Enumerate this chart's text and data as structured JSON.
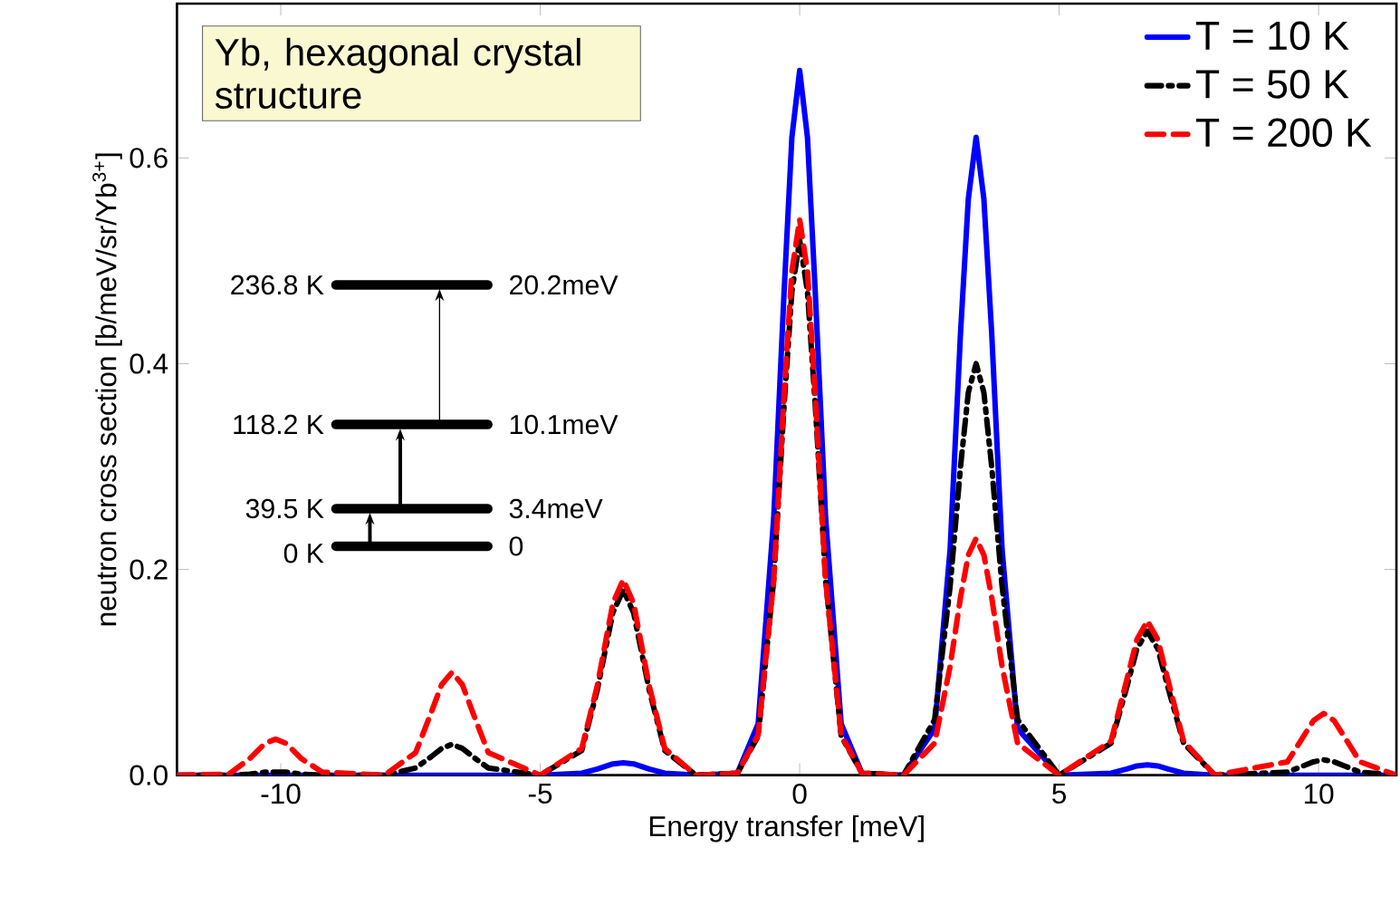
{
  "chart_data": {
    "type": "line",
    "title": "Yb, hexagonal crystal structure",
    "xlabel": "Energy transfer [meV]",
    "ylabel": "neutron cross section [b/meV/sr/Yb$^{3+}$]",
    "xlim": [
      -12,
      11.5
    ],
    "ylim": [
      0,
      0.75
    ],
    "xticks": [
      -10,
      -5,
      0,
      5,
      10
    ],
    "yticks": [
      {
        "value": 0,
        "label": "0.0"
      },
      0.2,
      0.4,
      0.6
    ],
    "grid": false,
    "legend": "top right",
    "marker": "none",
    "x": [
      -12,
      -11,
      -10.6,
      -10.3,
      -10.1,
      -9.9,
      -9.6,
      -9.2,
      -8,
      -7.4,
      -7.1,
      -6.9,
      -6.7,
      -6.5,
      -6.3,
      -6.0,
      -5,
      -4.2,
      -3.9,
      -3.6,
      -3.4,
      -3.2,
      -2.9,
      -2.6,
      -2,
      -1.2,
      -0.8,
      -0.5,
      -0.3,
      -0.15,
      0,
      0.15,
      0.3,
      0.5,
      0.8,
      1.2,
      2,
      2.6,
      2.9,
      3.1,
      3.25,
      3.4,
      3.55,
      3.7,
      3.9,
      4.2,
      5,
      6.0,
      6.3,
      6.5,
      6.7,
      6.9,
      7.1,
      7.4,
      8,
      9.4,
      9.7,
      9.9,
      10.1,
      10.3,
      10.5,
      10.8,
      11.5
    ],
    "series": [
      {
        "name": "T = 10 K",
        "color": "#0000ff",
        "line_style": "solid",
        "values": [
          0,
          0,
          0,
          0,
          0,
          0,
          0,
          0,
          0,
          0,
          0,
          0,
          0,
          0,
          0,
          0,
          0,
          0.002,
          0.006,
          0.011,
          0.012,
          0.011,
          0.006,
          0.002,
          0,
          0.002,
          0.05,
          0.25,
          0.47,
          0.62,
          0.685,
          0.62,
          0.47,
          0.25,
          0.05,
          0.002,
          0,
          0.045,
          0.22,
          0.43,
          0.56,
          0.62,
          0.56,
          0.43,
          0.22,
          0.045,
          0,
          0.002,
          0.006,
          0.009,
          0.01,
          0.009,
          0.006,
          0.002,
          0,
          0,
          0,
          0,
          0,
          0,
          0,
          0,
          0
        ]
      },
      {
        "name": "T = 50 K",
        "color": "#000000",
        "line_style": "dashdot",
        "values": [
          0,
          0,
          0.001,
          0.003,
          0.003,
          0.003,
          0.001,
          0,
          0,
          0.007,
          0.018,
          0.026,
          0.03,
          0.026,
          0.018,
          0.007,
          0,
          0.024,
          0.083,
          0.158,
          0.18,
          0.158,
          0.083,
          0.024,
          0,
          0.002,
          0.038,
          0.19,
          0.36,
          0.47,
          0.52,
          0.47,
          0.36,
          0.19,
          0.038,
          0.002,
          0,
          0.054,
          0.184,
          0.3,
          0.372,
          0.4,
          0.372,
          0.3,
          0.184,
          0.054,
          0,
          0.031,
          0.085,
          0.123,
          0.14,
          0.123,
          0.085,
          0.031,
          0,
          0.003,
          0.009,
          0.013,
          0.015,
          0.013,
          0.009,
          0.003,
          0
        ]
      },
      {
        "name": "T = 200 K",
        "color": "#ff0000",
        "line_style": "dashed",
        "values": [
          0,
          0.001,
          0.016,
          0.031,
          0.035,
          0.031,
          0.016,
          0.003,
          0,
          0.022,
          0.061,
          0.088,
          0.1,
          0.088,
          0.061,
          0.022,
          0,
          0.026,
          0.087,
          0.167,
          0.19,
          0.167,
          0.087,
          0.026,
          0,
          0.002,
          0.039,
          0.19,
          0.37,
          0.49,
          0.54,
          0.49,
          0.37,
          0.19,
          0.039,
          0.002,
          0,
          0.031,
          0.106,
          0.173,
          0.214,
          0.23,
          0.214,
          0.173,
          0.106,
          0.031,
          0,
          0.033,
          0.092,
          0.132,
          0.15,
          0.132,
          0.092,
          0.033,
          0,
          0.013,
          0.037,
          0.053,
          0.06,
          0.053,
          0.037,
          0.013,
          0
        ]
      }
    ],
    "annotations": [
      "236.8 K",
      "20.2meV",
      "118.2 K",
      "10.1meV",
      "39.5 K",
      "3.4meV",
      "0 K",
      "0"
    ]
  }
}
